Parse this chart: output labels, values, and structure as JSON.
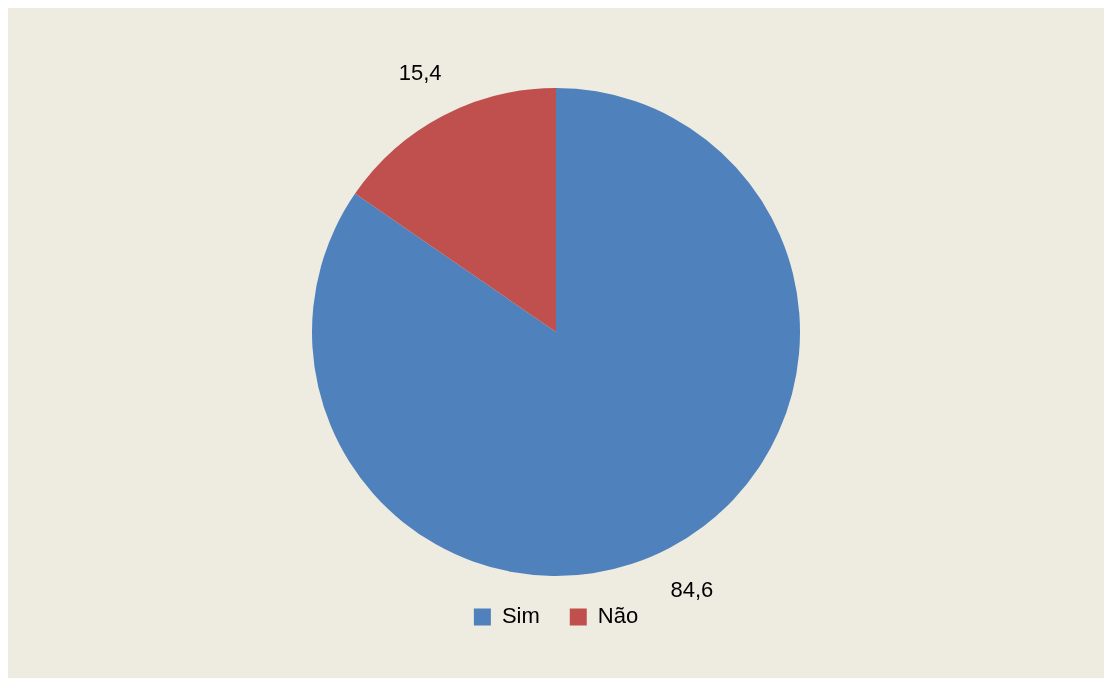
{
  "chart_data": {
    "type": "pie",
    "categories": [
      "Sim",
      "Não"
    ],
    "values": [
      84.6,
      15.4
    ],
    "colors": [
      "#4f81bd",
      "#c0504d"
    ],
    "value_labels": [
      "84,6",
      "15,4"
    ],
    "legend": "bottom"
  }
}
